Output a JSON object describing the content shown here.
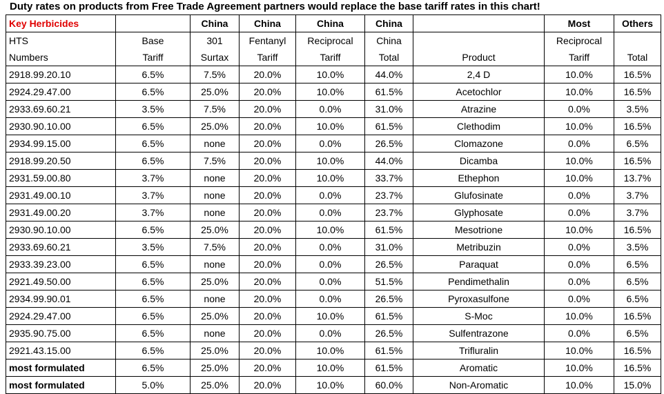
{
  "title": "Duty rates on products from Free Trade Agreement partners would replace the base tariff rates in this chart!",
  "table": {
    "header": [
      [
        "Key Herbicides",
        null,
        "China",
        "China",
        "China",
        "China",
        null,
        "Most",
        "Others"
      ],
      [
        "HTS",
        "Base",
        "301",
        "Fentanyl",
        "Reciprocal",
        "China",
        null,
        "Reciprocal",
        null
      ],
      [
        "Numbers",
        "Tariff",
        "Surtax",
        "Tariff",
        "Tariff",
        "Total",
        "Product",
        "Tariff",
        "Total"
      ]
    ],
    "rows": [
      [
        "2918.99.20.10",
        "6.5%",
        "7.5%",
        "20.0%",
        "10.0%",
        "44.0%",
        "2,4 D",
        "10.0%",
        "16.5%"
      ],
      [
        "2924.29.47.00",
        "6.5%",
        "25.0%",
        "20.0%",
        "10.0%",
        "61.5%",
        "Acetochlor",
        "10.0%",
        "16.5%"
      ],
      [
        "2933.69.60.21",
        "3.5%",
        "7.5%",
        "20.0%",
        "0.0%",
        "31.0%",
        "Atrazine",
        "0.0%",
        "3.5%"
      ],
      [
        "2930.90.10.00",
        "6.5%",
        "25.0%",
        "20.0%",
        "10.0%",
        "61.5%",
        "Clethodim",
        "10.0%",
        "16.5%"
      ],
      [
        "2934.99.15.00",
        "6.5%",
        "none",
        "20.0%",
        "0.0%",
        "26.5%",
        "Clomazone",
        "0.0%",
        "6.5%"
      ],
      [
        "2918.99.20.50",
        "6.5%",
        "7.5%",
        "20.0%",
        "10.0%",
        "44.0%",
        "Dicamba",
        "10.0%",
        "16.5%"
      ],
      [
        "2931.59.00.80",
        "3.7%",
        "none",
        "20.0%",
        "10.0%",
        "33.7%",
        "Ethephon",
        "10.0%",
        "13.7%"
      ],
      [
        "2931.49.00.10",
        "3.7%",
        "none",
        "20.0%",
        "0.0%",
        "23.7%",
        "Glufosinate",
        "0.0%",
        "3.7%"
      ],
      [
        "2931.49.00.20",
        "3.7%",
        "none",
        "20.0%",
        "0.0%",
        "23.7%",
        "Glyphosate",
        "0.0%",
        "3.7%"
      ],
      [
        "2930.90.10.00",
        "6.5%",
        "25.0%",
        "20.0%",
        "10.0%",
        "61.5%",
        "Mesotrione",
        "10.0%",
        "16.5%"
      ],
      [
        "2933.69.60.21",
        "3.5%",
        "7.5%",
        "20.0%",
        "0.0%",
        "31.0%",
        "Metribuzin",
        "0.0%",
        "3.5%"
      ],
      [
        "2933.39.23.00",
        "6.5%",
        "none",
        "20.0%",
        "0.0%",
        "26.5%",
        "Paraquat",
        "0.0%",
        "6.5%"
      ],
      [
        "2921.49.50.00",
        "6.5%",
        "25.0%",
        "20.0%",
        "0.0%",
        "51.5%",
        "Pendimethalin",
        "0.0%",
        "6.5%"
      ],
      [
        "2934.99.90.01",
        "6.5%",
        "none",
        "20.0%",
        "0.0%",
        "26.5%",
        "Pyroxasulfone",
        "0.0%",
        "6.5%"
      ],
      [
        "2924.29.47.00",
        "6.5%",
        "25.0%",
        "20.0%",
        "10.0%",
        "61.5%",
        "S-Moc",
        "10.0%",
        "16.5%"
      ],
      [
        "2935.90.75.00",
        "6.5%",
        "none",
        "20.0%",
        "0.0%",
        "26.5%",
        "Sulfentrazone",
        "0.0%",
        "6.5%"
      ],
      [
        "2921.43.15.00",
        "6.5%",
        "25.0%",
        "20.0%",
        "10.0%",
        "61.5%",
        "Trifluralin",
        "10.0%",
        "16.5%"
      ],
      [
        "most formulated",
        "6.5%",
        "25.0%",
        "20.0%",
        "10.0%",
        "61.5%",
        "Aromatic",
        "10.0%",
        "16.5%"
      ],
      [
        "most formulated",
        "5.0%",
        "25.0%",
        "20.0%",
        "10.0%",
        "60.0%",
        "Non-Aromatic",
        "10.0%",
        "15.0%"
      ]
    ]
  }
}
